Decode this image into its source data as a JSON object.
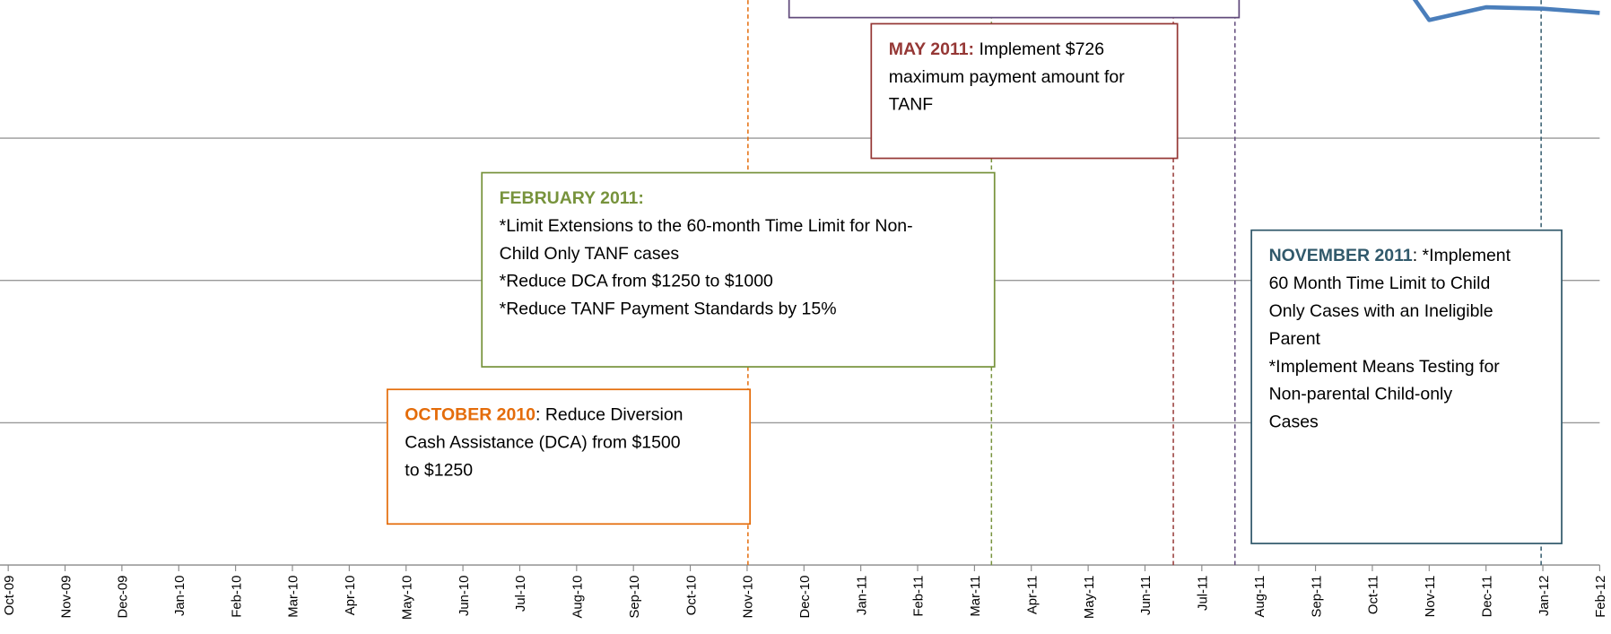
{
  "chart_data": {
    "type": "line",
    "categories": [
      "Oct-09",
      "Nov-09",
      "Dec-09",
      "Jan-10",
      "Feb-10",
      "Mar-10",
      "Apr-10",
      "May-10",
      "Jun-10",
      "Jul-10",
      "Aug-10",
      "Sep-10",
      "Oct-10",
      "Nov-10",
      "Dec-10",
      "Jan-11",
      "Feb-11",
      "Mar-11",
      "Apr-11",
      "May-11",
      "Jun-11",
      "Jul-11",
      "Aug-11",
      "Sep-11",
      "Oct-11",
      "Nov-11",
      "Dec-11",
      "Jan-12",
      "Feb-12"
    ],
    "series": [
      {
        "color": "#4a7ebb",
        "values": [
          null,
          null,
          null,
          null,
          null,
          null,
          null,
          null,
          null,
          null,
          null,
          null,
          null,
          null,
          null,
          null,
          null,
          null,
          null,
          null,
          null,
          null,
          null,
          null,
          4.4,
          3.83,
          3.92,
          3.91,
          3.88
        ]
      }
    ],
    "ylim": [
      0,
      3.97
    ],
    "yticks": [
      0,
      1,
      2,
      3
    ],
    "grid": true,
    "annotations": [
      {
        "heading": "MAY 2011:",
        "color": "#953735",
        "lines": [
          "  Implement $726",
          "maximum payment amount for",
          "TANF"
        ]
      },
      {
        "heading": "FEBRUARY 2011:",
        "color": "#77933c",
        "lines": [
          "",
          "*Limit Extensions to the 60-month Time Limit for Non-",
          "Child Only TANF cases",
          "*Reduce DCA from $1250 to $1000",
          "*Reduce TANF Payment Standards by 15%"
        ]
      },
      {
        "heading": "OCTOBER 2010",
        "color": "#e46c0a",
        "lines": [
          ": Reduce Diversion",
          "Cash Assistance (DCA) from $1500",
          "to $1250"
        ]
      },
      {
        "heading": "NOVEMBER 2011",
        "color": "#31596b",
        "lines": [
          ": *Implement",
          "60 Month Time Limit to Child",
          "Only Cases with an Ineligible",
          "Parent",
          "*Implement Means Testing for",
          "Non-parental Child-only",
          "Cases"
        ]
      }
    ]
  }
}
